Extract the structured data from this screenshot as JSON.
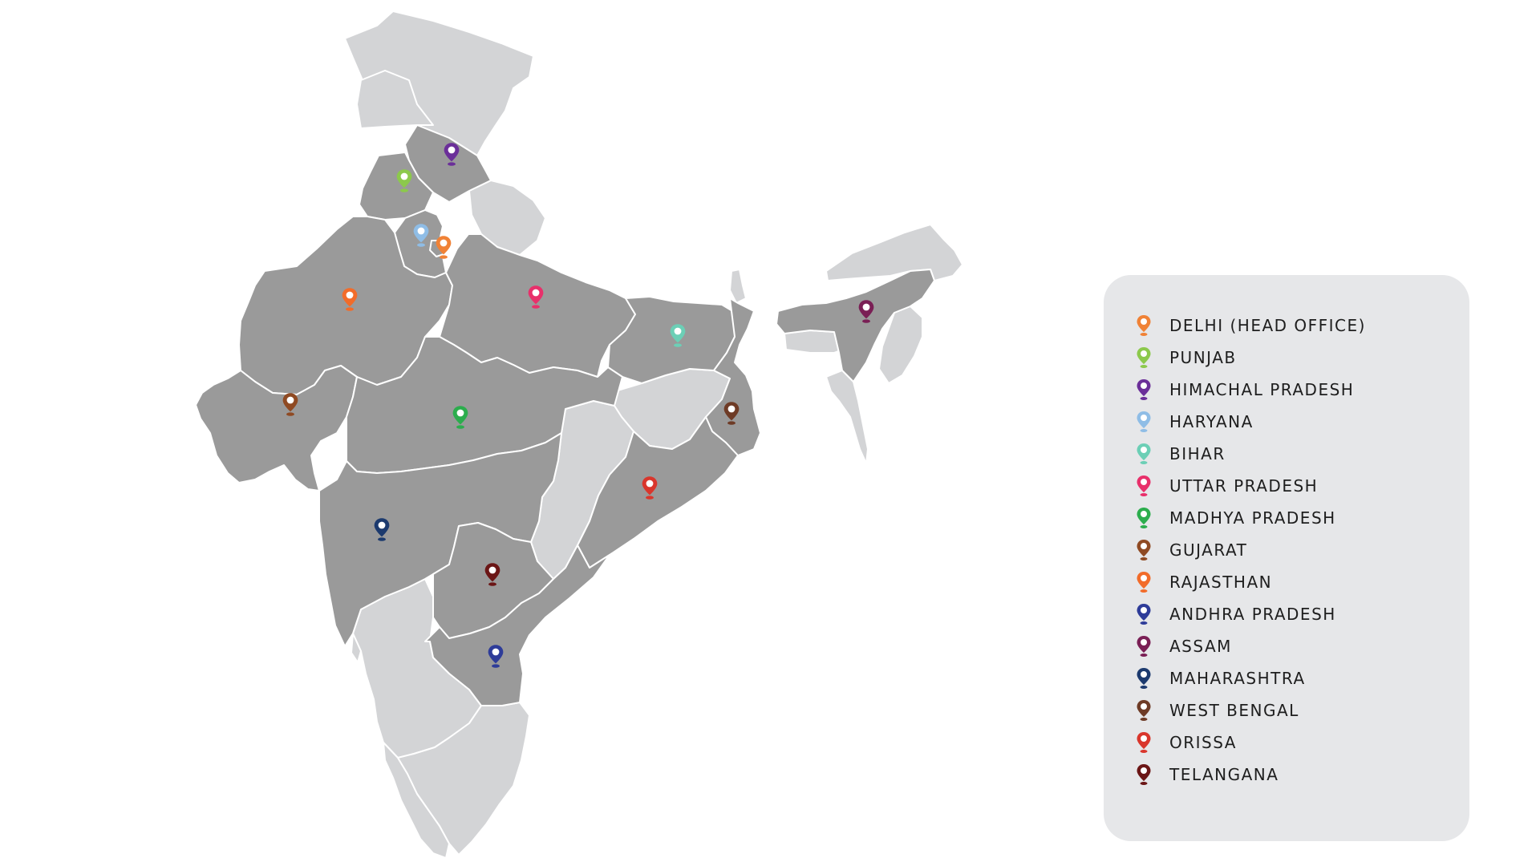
{
  "colors": {
    "highlighted_state": "#9a9a9a",
    "other_state": "#d3d4d6",
    "legend_background": "#e6e7e9",
    "label_text": "#1e1e1e"
  },
  "legend": {
    "items": [
      {
        "label": "DELHI (HEAD OFFICE)",
        "color": "#f08236",
        "icon": "location-pin-icon"
      },
      {
        "label": "PUNJAB",
        "color": "#8cc94c",
        "icon": "location-pin-icon"
      },
      {
        "label": "HIMACHAL PRADESH",
        "color": "#6b2f99",
        "icon": "location-pin-icon"
      },
      {
        "label": "HARYANA",
        "color": "#8fbde6",
        "icon": "location-pin-icon"
      },
      {
        "label": "BIHAR",
        "color": "#6ccfb6",
        "icon": "location-pin-icon"
      },
      {
        "label": "UTTAR PRADESH",
        "color": "#e8306b",
        "icon": "location-pin-icon"
      },
      {
        "label": "MADHYA PRADESH",
        "color": "#2cad4d",
        "icon": "location-pin-icon"
      },
      {
        "label": "GUJARAT",
        "color": "#8f4a23",
        "icon": "location-pin-icon"
      },
      {
        "label": "RAJASTHAN",
        "color": "#f26c2a",
        "icon": "location-pin-icon"
      },
      {
        "label": "ANDHRA PRADESH",
        "color": "#2e3c99",
        "icon": "location-pin-icon"
      },
      {
        "label": "ASSAM",
        "color": "#7a1f55",
        "icon": "location-pin-icon"
      },
      {
        "label": "MAHARASHTRA",
        "color": "#1c3a6e",
        "icon": "location-pin-icon"
      },
      {
        "label": "WEST BENGAL",
        "color": "#6e3b26",
        "icon": "location-pin-icon"
      },
      {
        "label": "ORISSA",
        "color": "#d9362c",
        "icon": "location-pin-icon"
      },
      {
        "label": "TELANGANA",
        "color": "#6b1616",
        "icon": "location-pin-icon"
      }
    ]
  },
  "map_markers": [
    {
      "state": "DELHI (HEAD OFFICE)",
      "color": "#f08236",
      "icon": "location-pin-icon"
    },
    {
      "state": "PUNJAB",
      "color": "#8cc94c",
      "icon": "location-pin-icon"
    },
    {
      "state": "HIMACHAL PRADESH",
      "color": "#6b2f99",
      "icon": "location-pin-icon"
    },
    {
      "state": "HARYANA",
      "color": "#8fbde6",
      "icon": "location-pin-icon"
    },
    {
      "state": "BIHAR",
      "color": "#6ccfb6",
      "icon": "location-pin-icon"
    },
    {
      "state": "UTTAR PRADESH",
      "color": "#e8306b",
      "icon": "location-pin-icon"
    },
    {
      "state": "MADHYA PRADESH",
      "color": "#2cad4d",
      "icon": "location-pin-icon"
    },
    {
      "state": "GUJARAT",
      "color": "#8f4a23",
      "icon": "location-pin-icon"
    },
    {
      "state": "RAJASTHAN",
      "color": "#f26c2a",
      "icon": "location-pin-icon"
    },
    {
      "state": "ANDHRA PRADESH",
      "color": "#2e3c99",
      "icon": "location-pin-icon"
    },
    {
      "state": "ASSAM",
      "color": "#7a1f55",
      "icon": "location-pin-icon"
    },
    {
      "state": "MAHARASHTRA",
      "color": "#1c3a6e",
      "icon": "location-pin-icon"
    },
    {
      "state": "WEST BENGAL",
      "color": "#6e3b26",
      "icon": "location-pin-icon"
    },
    {
      "state": "ORISSA",
      "color": "#d9362c",
      "icon": "location-pin-icon"
    },
    {
      "state": "TELANGANA",
      "color": "#6b1616",
      "icon": "location-pin-icon"
    }
  ]
}
